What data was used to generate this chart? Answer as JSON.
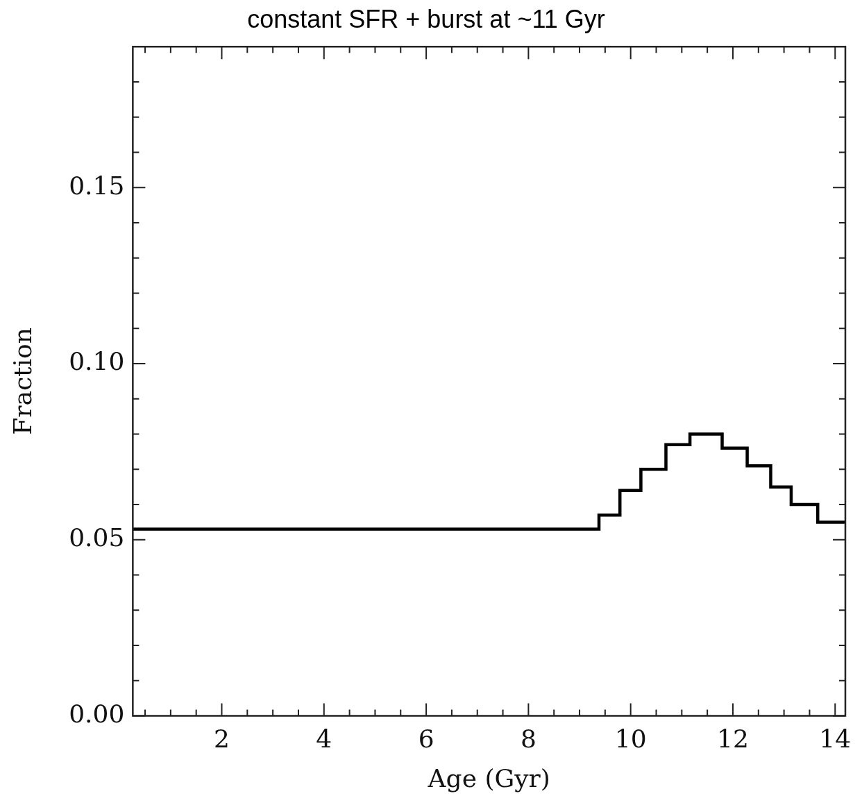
{
  "chart_data": {
    "type": "step",
    "title": "constant SFR + burst at ~11 Gyr",
    "xlabel": "Age (Gyr)",
    "ylabel": "Fraction",
    "x": [
      0.26,
      9.38,
      9.79,
      10.2,
      10.69,
      11.16,
      11.79,
      12.28,
      12.74,
      13.14,
      13.66,
      14.2
    ],
    "series": [
      {
        "color": "#000000",
        "values": [
          0.053,
          0.057,
          0.064,
          0.07,
          0.077,
          0.08,
          0.076,
          0.071,
          0.065,
          0.06,
          0.055,
          0.055
        ]
      }
    ],
    "xlim": [
      0.26,
      14.2
    ],
    "xticks": [
      {
        "value": 0.5,
        "label": null
      },
      {
        "value": 1,
        "label": null
      },
      {
        "value": 1.5,
        "label": null
      },
      2,
      {
        "value": 2.5,
        "label": null
      },
      {
        "value": 3,
        "label": null
      },
      {
        "value": 3.5,
        "label": null
      },
      4,
      {
        "value": 4.5,
        "label": null
      },
      {
        "value": 5,
        "label": null
      },
      {
        "value": 5.5,
        "label": null
      },
      6,
      {
        "value": 6.5,
        "label": null
      },
      {
        "value": 7,
        "label": null
      },
      {
        "value": 7.5,
        "label": null
      },
      8,
      {
        "value": 8.5,
        "label": null
      },
      {
        "value": 9,
        "label": null
      },
      {
        "value": 9.5,
        "label": null
      },
      10,
      {
        "value": 10.5,
        "label": null
      },
      {
        "value": 11,
        "label": null
      },
      {
        "value": 11.5,
        "label": null
      },
      12,
      {
        "value": 12.5,
        "label": null
      },
      {
        "value": 13,
        "label": null
      },
      {
        "value": 13.5,
        "label": null
      },
      14
    ],
    "ylim": [
      0,
      0.19
    ],
    "yticks": [
      {
        "value": 0,
        "label": "0.00"
      },
      {
        "value": 0.01,
        "label": null
      },
      {
        "value": 0.02,
        "label": null
      },
      {
        "value": 0.03,
        "label": null
      },
      {
        "value": 0.04,
        "label": null
      },
      {
        "value": 0.05,
        "label": "0.05"
      },
      {
        "value": 0.06,
        "label": null
      },
      {
        "value": 0.07,
        "label": null
      },
      {
        "value": 0.08,
        "label": null
      },
      {
        "value": 0.09,
        "label": null
      },
      {
        "value": 0.1,
        "label": "0.10"
      },
      {
        "value": 0.11,
        "label": null
      },
      {
        "value": 0.12,
        "label": null
      },
      {
        "value": 0.13,
        "label": null
      },
      {
        "value": 0.14,
        "label": null
      },
      {
        "value": 0.15,
        "label": "0.15"
      },
      {
        "value": 0.16,
        "label": null
      },
      {
        "value": 0.17,
        "label": null
      },
      {
        "value": 0.18,
        "label": null
      }
    ],
    "grid": false,
    "legend": false,
    "marker": "none",
    "line_style": "solid"
  }
}
